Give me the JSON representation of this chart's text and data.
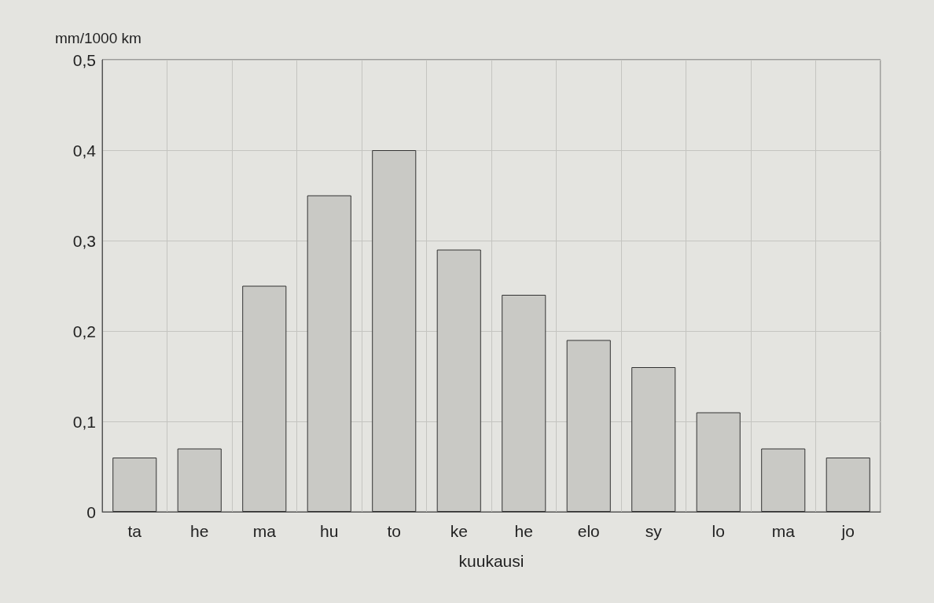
{
  "chart_data": {
    "type": "bar",
    "ylabel": "mm/1000 km",
    "xlabel": "kuukausi",
    "categories": [
      "ta",
      "he",
      "ma",
      "hu",
      "to",
      "ke",
      "he",
      "elo",
      "sy",
      "lo",
      "ma",
      "jo"
    ],
    "values": [
      0.06,
      0.07,
      0.25,
      0.35,
      0.4,
      0.29,
      0.24,
      0.19,
      0.16,
      0.11,
      0.07,
      0.06
    ],
    "color": "#c9c9c5",
    "ylim": [
      0,
      0.5
    ],
    "yticks": [
      0,
      {
        "value": 0.1,
        "label": "0,1"
      },
      {
        "value": 0.2,
        "label": "0,2"
      },
      {
        "value": 0.3,
        "label": "0,3"
      },
      {
        "value": 0.4,
        "label": "0,4"
      },
      {
        "value": 0.5,
        "label": "0,5"
      }
    ],
    "grid": true
  }
}
